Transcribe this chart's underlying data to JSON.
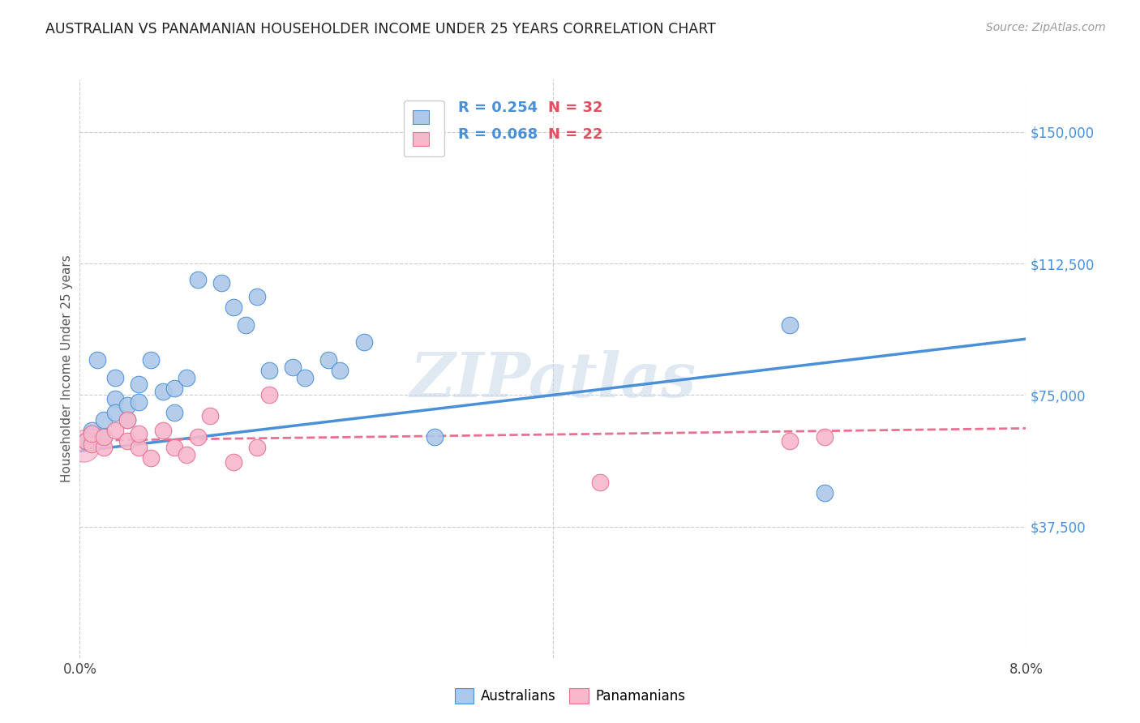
{
  "title": "AUSTRALIAN VS PANAMANIAN HOUSEHOLDER INCOME UNDER 25 YEARS CORRELATION CHART",
  "source": "Source: ZipAtlas.com",
  "xlim": [
    0.0,
    0.08
  ],
  "ylim": [
    0,
    165000
  ],
  "ylabel": "Householder Income Under 25 years",
  "watermark": "ZIPatlas",
  "aus_R": 0.254,
  "aus_N": 32,
  "pan_R": 0.068,
  "pan_N": 22,
  "aus_color": "#adc8e8",
  "aus_line_color": "#4a90d9",
  "pan_color": "#f7b8cc",
  "pan_line_color": "#e87090",
  "australians_x": [
    0.0005,
    0.001,
    0.001,
    0.0015,
    0.002,
    0.002,
    0.003,
    0.003,
    0.003,
    0.004,
    0.004,
    0.005,
    0.005,
    0.006,
    0.007,
    0.008,
    0.008,
    0.009,
    0.01,
    0.012,
    0.013,
    0.014,
    0.015,
    0.016,
    0.018,
    0.019,
    0.021,
    0.022,
    0.024,
    0.03,
    0.06,
    0.063
  ],
  "australians_y": [
    62000,
    65000,
    63000,
    85000,
    63000,
    68000,
    80000,
    74000,
    70000,
    68000,
    72000,
    78000,
    73000,
    85000,
    76000,
    77000,
    70000,
    80000,
    108000,
    107000,
    100000,
    95000,
    103000,
    82000,
    83000,
    80000,
    85000,
    82000,
    90000,
    63000,
    95000,
    47000
  ],
  "panamanians_x": [
    0.0005,
    0.001,
    0.001,
    0.002,
    0.002,
    0.003,
    0.004,
    0.004,
    0.005,
    0.005,
    0.006,
    0.007,
    0.008,
    0.009,
    0.01,
    0.011,
    0.013,
    0.015,
    0.016,
    0.044,
    0.06,
    0.063
  ],
  "panamanians_y": [
    62000,
    61000,
    64000,
    60000,
    63000,
    65000,
    68000,
    62000,
    60000,
    64000,
    57000,
    65000,
    60000,
    58000,
    63000,
    69000,
    56000,
    60000,
    75000,
    50000,
    62000,
    63000
  ],
  "aus_trendline_x": [
    0.0,
    0.08
  ],
  "aus_trendline_y": [
    59000,
    91000
  ],
  "pan_trendline_x": [
    0.0,
    0.08
  ],
  "pan_trendline_y": [
    62000,
    65500
  ],
  "xtick_positions": [
    0.0,
    0.08
  ],
  "xtick_labels": [
    "0.0%",
    "8.0%"
  ],
  "ytick_right_vals": [
    150000,
    112500,
    75000,
    37500
  ],
  "ytick_right_labels": [
    "$150,000",
    "$112,500",
    "$75,000",
    "$37,500"
  ],
  "yhline_vals": [
    0,
    37500,
    75000,
    112500,
    150000
  ],
  "background_color": "#ffffff",
  "grid_color": "#cccccc",
  "title_color": "#222222",
  "right_label_color": "#4a90d9",
  "source_color": "#999999"
}
